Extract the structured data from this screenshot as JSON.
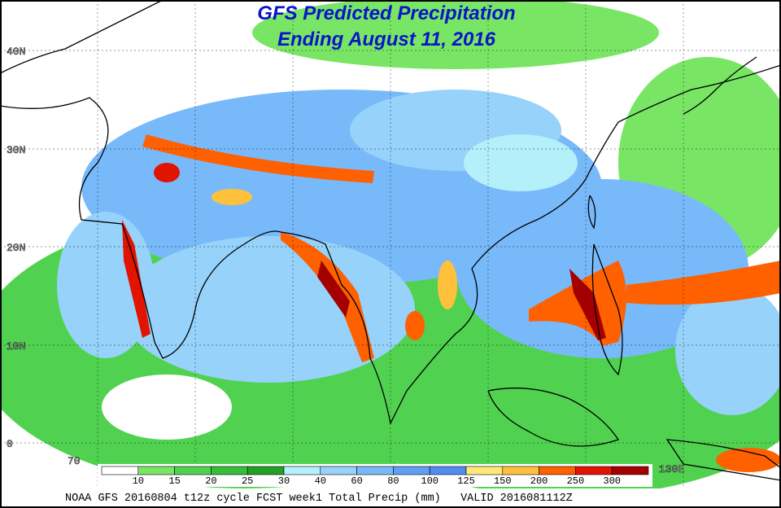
{
  "title": {
    "line1": "GFS Predicted Precipitation",
    "line2": "Ending August 11, 2016"
  },
  "latitude_labels": [
    "40N",
    "30N",
    "20N",
    "10N",
    "0"
  ],
  "longitude_labels": [
    "70",
    "130E"
  ],
  "legend": {
    "thresholds": [
      10,
      15,
      20,
      25,
      30,
      40,
      60,
      80,
      100,
      125,
      150,
      200,
      250,
      300
    ],
    "colors": [
      "#ffffff",
      "#78e664",
      "#50d250",
      "#37be37",
      "#23a023",
      "#b4f0fa",
      "#96d2fa",
      "#78b9fa",
      "#5fa0f5",
      "#508cf0",
      "#ffe878",
      "#ffc03c",
      "#ff6000",
      "#e11400",
      "#a50000"
    ]
  },
  "footer": "NOAA GFS 20160804 t12z cycle FCST week1 Total Precip (mm)   VALID 2016081112Z"
}
